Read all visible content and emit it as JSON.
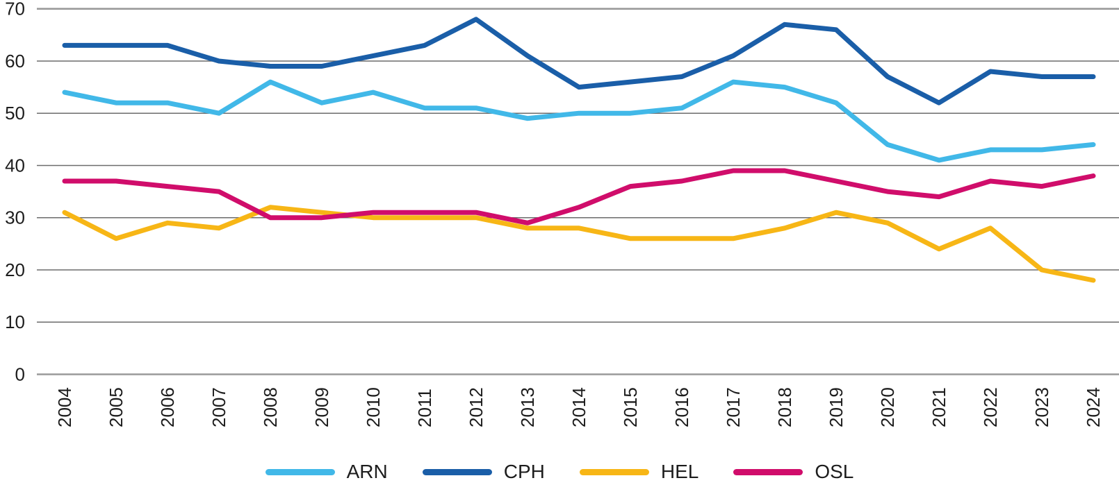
{
  "chart_data": {
    "type": "line",
    "title": "",
    "xlabel": "",
    "ylabel": "",
    "x_categories": [
      "2004",
      "2005",
      "2006",
      "2007",
      "2008",
      "2009",
      "2010",
      "2011",
      "2012",
      "2013",
      "2014",
      "2015",
      "2016",
      "2017",
      "2018",
      "2019",
      "2020",
      "2021",
      "2022",
      "2023",
      "2024"
    ],
    "y_ticks": [
      0,
      10,
      20,
      30,
      40,
      50,
      60,
      70
    ],
    "ylim": [
      0,
      70
    ],
    "grid": "horizontal-only",
    "legend_position": "bottom-center",
    "series": [
      {
        "name": "ARN",
        "color": "#41B8E8",
        "values": [
          54,
          52,
          52,
          50,
          56,
          52,
          54,
          51,
          51,
          49,
          50,
          50,
          51,
          56,
          55,
          52,
          44,
          41,
          43,
          43,
          44
        ]
      },
      {
        "name": "CPH",
        "color": "#1A5EA8",
        "values": [
          63,
          63,
          63,
          60,
          59,
          59,
          61,
          63,
          68,
          61,
          55,
          56,
          57,
          61,
          67,
          66,
          57,
          52,
          58,
          57,
          57
        ]
      },
      {
        "name": "HEL",
        "color": "#F7B616",
        "values": [
          31,
          26,
          29,
          28,
          32,
          31,
          30,
          30,
          30,
          28,
          28,
          26,
          26,
          26,
          28,
          31,
          29,
          24,
          28,
          20,
          18
        ]
      },
      {
        "name": "OSL",
        "color": "#D00D6B",
        "values": [
          37,
          37,
          36,
          35,
          30,
          30,
          31,
          31,
          31,
          29,
          32,
          36,
          37,
          39,
          39,
          37,
          35,
          34,
          37,
          36,
          38
        ]
      }
    ]
  },
  "style": {
    "grid_color_mid": "#6b6b6b",
    "grid_color_edge": "#9a9a9a",
    "axis_text_color": "#1d1d1d"
  }
}
